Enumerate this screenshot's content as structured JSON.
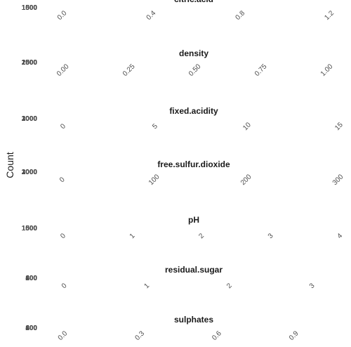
{
  "chart_data": {
    "type": "bar",
    "ylabel": "Count",
    "panels": [
      {
        "title": "citric.acid",
        "y_ticks": [
          "1500",
          "1000",
          "500",
          "0"
        ],
        "x_ticks": [
          "0.0",
          "0.4",
          "0.8",
          "1.2"
        ],
        "x_range": [
          -0.02,
          1.26
        ]
      },
      {
        "title": "density",
        "y_ticks": [
          "2500",
          "2000",
          "1500",
          "1000",
          "500",
          "0"
        ],
        "x_ticks": [
          "0.00",
          "0.25",
          "0.50",
          "0.75",
          "1.00"
        ],
        "x_range": [
          -0.02,
          1.06
        ]
      },
      {
        "title": "fixed.acidity",
        "y_ticks": [
          "3000",
          "2000",
          "1000",
          "0"
        ],
        "x_ticks": [
          "0",
          "5",
          "10",
          "15"
        ],
        "x_range": [
          -0.3,
          15.2
        ]
      },
      {
        "title": "free.sulfur.dioxide",
        "y_ticks": [
          "3000",
          "2000",
          "1000",
          "0"
        ],
        "x_ticks": [
          "0",
          "100",
          "200",
          "300"
        ],
        "x_range": [
          -5,
          305
        ]
      },
      {
        "title": "pH",
        "y_ticks": [
          "1500",
          "1000",
          "500",
          "0"
        ],
        "x_ticks": [
          "0",
          "1",
          "2",
          "3",
          "4"
        ],
        "x_range": [
          -0.08,
          4.04
        ]
      },
      {
        "title": "residual.sugar",
        "y_ticks": [
          "600",
          "400",
          "200",
          "0"
        ],
        "x_ticks": [
          "0",
          "1",
          "2",
          "3"
        ],
        "x_range": [
          -0.08,
          3.37
        ]
      },
      {
        "title": "sulphates",
        "y_ticks": [
          "600",
          "400",
          "200",
          "0"
        ],
        "x_ticks": [
          "0.0",
          "0.3",
          "0.6",
          "0.9"
        ],
        "x_range": [
          -0.02,
          1.09
        ]
      }
    ]
  }
}
